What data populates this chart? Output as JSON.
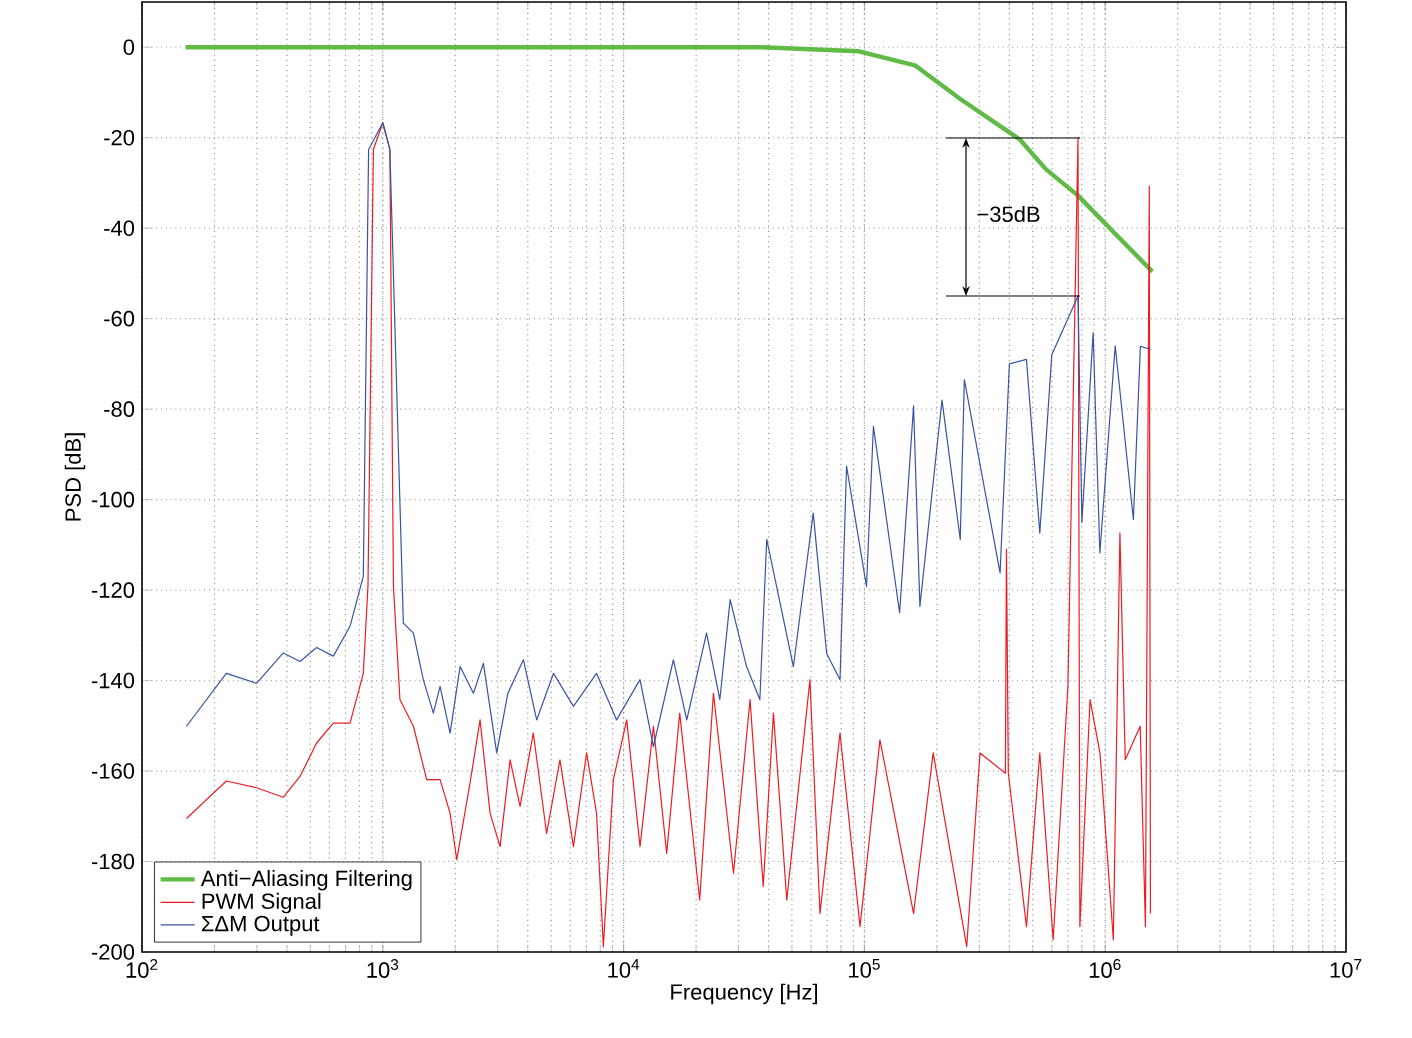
{
  "chart_data": {
    "type": "line",
    "xlabel": "Frequency [Hz]",
    "ylabel": "PSD [dB]",
    "log": "x",
    "grid": true,
    "legend": "bottom left",
    "xlim": [
      100,
      10000000
    ],
    "xticks": [
      {
        "value": 100,
        "label": "10$^{2}$"
      },
      {
        "value": 1000,
        "label": "10$^{3}$"
      },
      {
        "value": 10000,
        "label": "10$^{4}$"
      },
      {
        "value": 100000,
        "label": "10$^{5}$"
      },
      {
        "value": 1000000,
        "label": "10$^{6}$"
      },
      {
        "value": 10000000,
        "label": "10$^{7}$"
      }
    ],
    "ylim": [
      -200,
      10
    ],
    "yticks": [
      -200,
      -180,
      -160,
      -140,
      -120,
      -100,
      -80,
      -60,
      -40,
      -20,
      0
    ],
    "series": [
      {
        "name": "Anti−Aliasing Filtering",
        "color": "#5fbb46",
        "x": [
          152,
          1000,
          10000,
          36800,
          95000,
          162000,
          251000,
          442000,
          568000,
          771000,
          1090000,
          1570000
        ],
        "values": [
          0,
          0,
          0,
          0,
          -0.9,
          -4,
          -11.5,
          -20.4,
          -27,
          -32.8,
          -41,
          -49.6
        ]
      },
      {
        "name": "PWM Signal",
        "color": "#ed1c24",
        "x": [
          153,
          224,
          299,
          386,
          453,
          531,
          623,
          731,
          830,
          868,
          914,
          1000,
          1070,
          1107,
          1178,
          1340,
          1521,
          1729,
          1903,
          2028,
          2303,
          2534,
          2789,
          3069,
          3377,
          3715,
          4217,
          4789,
          5440,
          6190,
          7020,
          7720,
          8240,
          9070,
          10300,
          11700,
          13300,
          15100,
          17100,
          20700,
          23600,
          28600,
          33500,
          38000,
          41900,
          47600,
          59400,
          65400,
          79200,
          95900,
          116000,
          160000,
          193000,
          266000,
          302000,
          385000,
          389000,
          396000,
          471000,
          535000,
          608000,
          700000,
          771000,
          785000,
          865000,
          951000,
          1081000,
          1151000,
          1211000,
          1397000,
          1469000,
          1524000,
          1541000
        ],
        "values": [
          -170.5,
          -162.2,
          -163.7,
          -165.8,
          -161.2,
          -153.8,
          -149.4,
          -149.4,
          -138.4,
          -119,
          -22.6,
          -16.7,
          -22.6,
          -119.2,
          -144.2,
          -150.1,
          -161.9,
          -161.9,
          -169.3,
          -179.6,
          -162.6,
          -148.7,
          -169.3,
          -176.7,
          -157.5,
          -167.8,
          -151.6,
          -173.8,
          -157.5,
          -176.7,
          -156,
          -169.3,
          -198.8,
          -161.9,
          -148.7,
          -176.7,
          -150.1,
          -178.2,
          -147.2,
          -188.5,
          -142.8,
          -182.6,
          -144.2,
          -185.5,
          -147.2,
          -188.5,
          -139.8,
          -191.5,
          -151.6,
          -194.4,
          -153.1,
          -191.5,
          -156,
          -198.8,
          -156,
          -160.5,
          -111,
          -160.5,
          -194.4,
          -156,
          -197.3,
          -141.3,
          -20,
          -194.4,
          -144.2,
          -156,
          -197.3,
          -107.4,
          -157.5,
          -150.1,
          -194.4,
          -30.7,
          -191.5
        ]
      },
      {
        "name": "ΣΔM Output",
        "color": "#3953a4",
        "x": [
          153,
          224,
          299,
          386,
          453,
          531,
          623,
          731,
          830,
          873,
          1000,
          1070,
          1217,
          1340,
          1473,
          1622,
          1729,
          1903,
          2094,
          2378,
          2616,
          2972,
          3308,
          3837,
          4356,
          5117,
          6190,
          7720,
          9350,
          11700,
          13300,
          16100,
          18300,
          22100,
          25100,
          27700,
          32400,
          36800,
          39300,
          50700,
          61300,
          69700,
          79200,
          84300,
          102000,
          109000,
          140000,
          160000,
          170000,
          210000,
          250000,
          260000,
          366000,
          400000,
          471000,
          535000,
          600000,
          771000,
          800000,
          891000,
          950000,
          1100000,
          1309000,
          1400000,
          1541000
        ],
        "values": [
          -150.1,
          -138.4,
          -140.6,
          -133.9,
          -135.8,
          -132.7,
          -134.6,
          -128,
          -116.9,
          -22.6,
          -16.7,
          -22.6,
          -127.3,
          -129.5,
          -139.8,
          -147.2,
          -141.3,
          -151.6,
          -136.9,
          -142.8,
          -136.2,
          -156,
          -142.8,
          -135.4,
          -148.7,
          -138.4,
          -145.7,
          -138.4,
          -148.7,
          -139.8,
          -154.6,
          -135.4,
          -148.7,
          -129.5,
          -144.2,
          -122.1,
          -136.9,
          -144.2,
          -108.8,
          -136.9,
          -103,
          -134,
          -139.8,
          -92.6,
          -119.2,
          -83.8,
          -125,
          -79.3,
          -123.6,
          -78,
          -108.8,
          -73.5,
          -116.2,
          -70,
          -69,
          -107.4,
          -68,
          -55,
          -105,
          -63.1,
          -111.8,
          -66,
          -104.4,
          -66.1,
          -66.8
        ]
      }
    ],
    "annotations": [
      "−35dB"
    ]
  }
}
